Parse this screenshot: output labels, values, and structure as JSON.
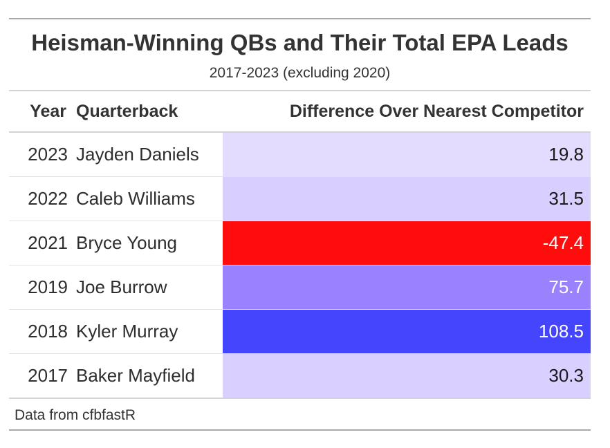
{
  "chart_data": {
    "type": "table",
    "title": "Heisman-Winning QBs and Their Total EPA Leads",
    "subtitle": "2017-2023 (excluding 2020)",
    "columns": [
      "Year",
      "Quarterback",
      "Difference Over Nearest Competitor"
    ],
    "rows": [
      {
        "year": "2023",
        "quarterback": "Jayden Daniels",
        "difference": 19.8,
        "difference_label": "19.8",
        "fill": "#e3dcff",
        "text_color": "#1a1a1a"
      },
      {
        "year": "2022",
        "quarterback": "Caleb Williams",
        "difference": 31.5,
        "difference_label": "31.5",
        "fill": "#d9cfff",
        "text_color": "#1a1a1a"
      },
      {
        "year": "2021",
        "quarterback": "Bryce Young",
        "difference": -47.4,
        "difference_label": "-47.4",
        "fill": "#ff0d0d",
        "text_color": "#ffffff"
      },
      {
        "year": "2019",
        "quarterback": "Joe Burrow",
        "difference": 75.7,
        "difference_label": "75.7",
        "fill": "#9a82ff",
        "text_color": "#ffffff"
      },
      {
        "year": "2018",
        "quarterback": "Kyler Murray",
        "difference": 108.5,
        "difference_label": "108.5",
        "fill": "#4545fe",
        "text_color": "#ffffff"
      },
      {
        "year": "2017",
        "quarterback": "Baker Mayfield",
        "difference": 30.3,
        "difference_label": "30.3",
        "fill": "#d9d0ff",
        "text_color": "#1a1a1a"
      }
    ],
    "source_note": "Data from cfbfastR"
  }
}
